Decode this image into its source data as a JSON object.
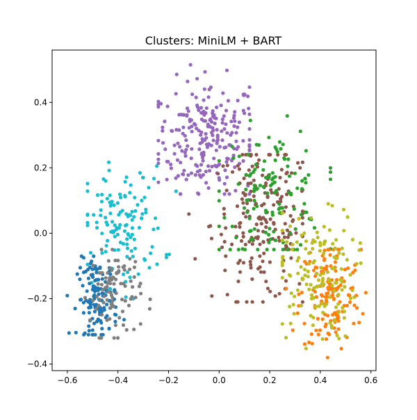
{
  "chart_data": {
    "type": "scatter",
    "title": "Clusters: MiniLM + BART",
    "xlabel": "",
    "ylabel": "",
    "xlim": [
      -0.66,
      0.62
    ],
    "ylim": [
      -0.42,
      0.56
    ],
    "xticks": [
      -0.6,
      -0.4,
      -0.2,
      0.0,
      0.2,
      0.4,
      0.6
    ],
    "xtick_labels": [
      "−0.6",
      "−0.4",
      "−0.2",
      "0.0",
      "0.2",
      "0.4",
      "0.6"
    ],
    "yticks": [
      -0.4,
      -0.2,
      0.0,
      0.2,
      0.4
    ],
    "ytick_labels": [
      "−0.4",
      "−0.2",
      "0.0",
      "0.2",
      "0.4"
    ],
    "grid": false,
    "legend": "none",
    "series": [
      {
        "color": "#9467bd",
        "center": [
          -0.05,
          0.29
        ],
        "spread": [
          0.1,
          0.09
        ],
        "count": 240,
        "extent_x": [
          -0.24,
          0.12
        ],
        "extent_y": [
          0.12,
          0.54
        ]
      },
      {
        "color": "#8c564b",
        "center": [
          0.17,
          0.03
        ],
        "spread": [
          0.1,
          0.12
        ],
        "count": 200,
        "extent_x": [
          -0.15,
          0.33
        ],
        "extent_y": [
          -0.21,
          0.24
        ]
      },
      {
        "color": "#2ca02c",
        "center": [
          0.21,
          0.12
        ],
        "spread": [
          0.1,
          0.1
        ],
        "count": 130,
        "extent_x": [
          0.0,
          0.44
        ],
        "extent_y": [
          -0.05,
          0.37
        ]
      },
      {
        "color": "#ff7f0e",
        "center": [
          0.44,
          -0.19
        ],
        "spread": [
          0.06,
          0.09
        ],
        "count": 140,
        "extent_x": [
          0.22,
          0.58
        ],
        "extent_y": [
          -0.38,
          -0.05
        ]
      },
      {
        "color": "#bcbd22",
        "center": [
          0.38,
          -0.13
        ],
        "spread": [
          0.08,
          0.1
        ],
        "count": 150,
        "extent_x": [
          0.25,
          0.56
        ],
        "extent_y": [
          -0.37,
          0.09
        ]
      },
      {
        "color": "#17becf",
        "center": [
          -0.38,
          0.02
        ],
        "spread": [
          0.08,
          0.09
        ],
        "count": 130,
        "extent_x": [
          -0.52,
          -0.15
        ],
        "extent_y": [
          -0.2,
          0.25
        ]
      },
      {
        "color": "#1f77b4",
        "center": [
          -0.48,
          -0.2
        ],
        "spread": [
          0.04,
          0.06
        ],
        "count": 130,
        "extent_x": [
          -0.6,
          -0.34
        ],
        "extent_y": [
          -0.31,
          -0.07
        ]
      },
      {
        "color": "#7f7f7f",
        "center": [
          -0.41,
          -0.18
        ],
        "spread": [
          0.05,
          0.07
        ],
        "count": 90,
        "extent_x": [
          -0.55,
          -0.27
        ],
        "extent_y": [
          -0.32,
          -0.05
        ]
      }
    ]
  }
}
